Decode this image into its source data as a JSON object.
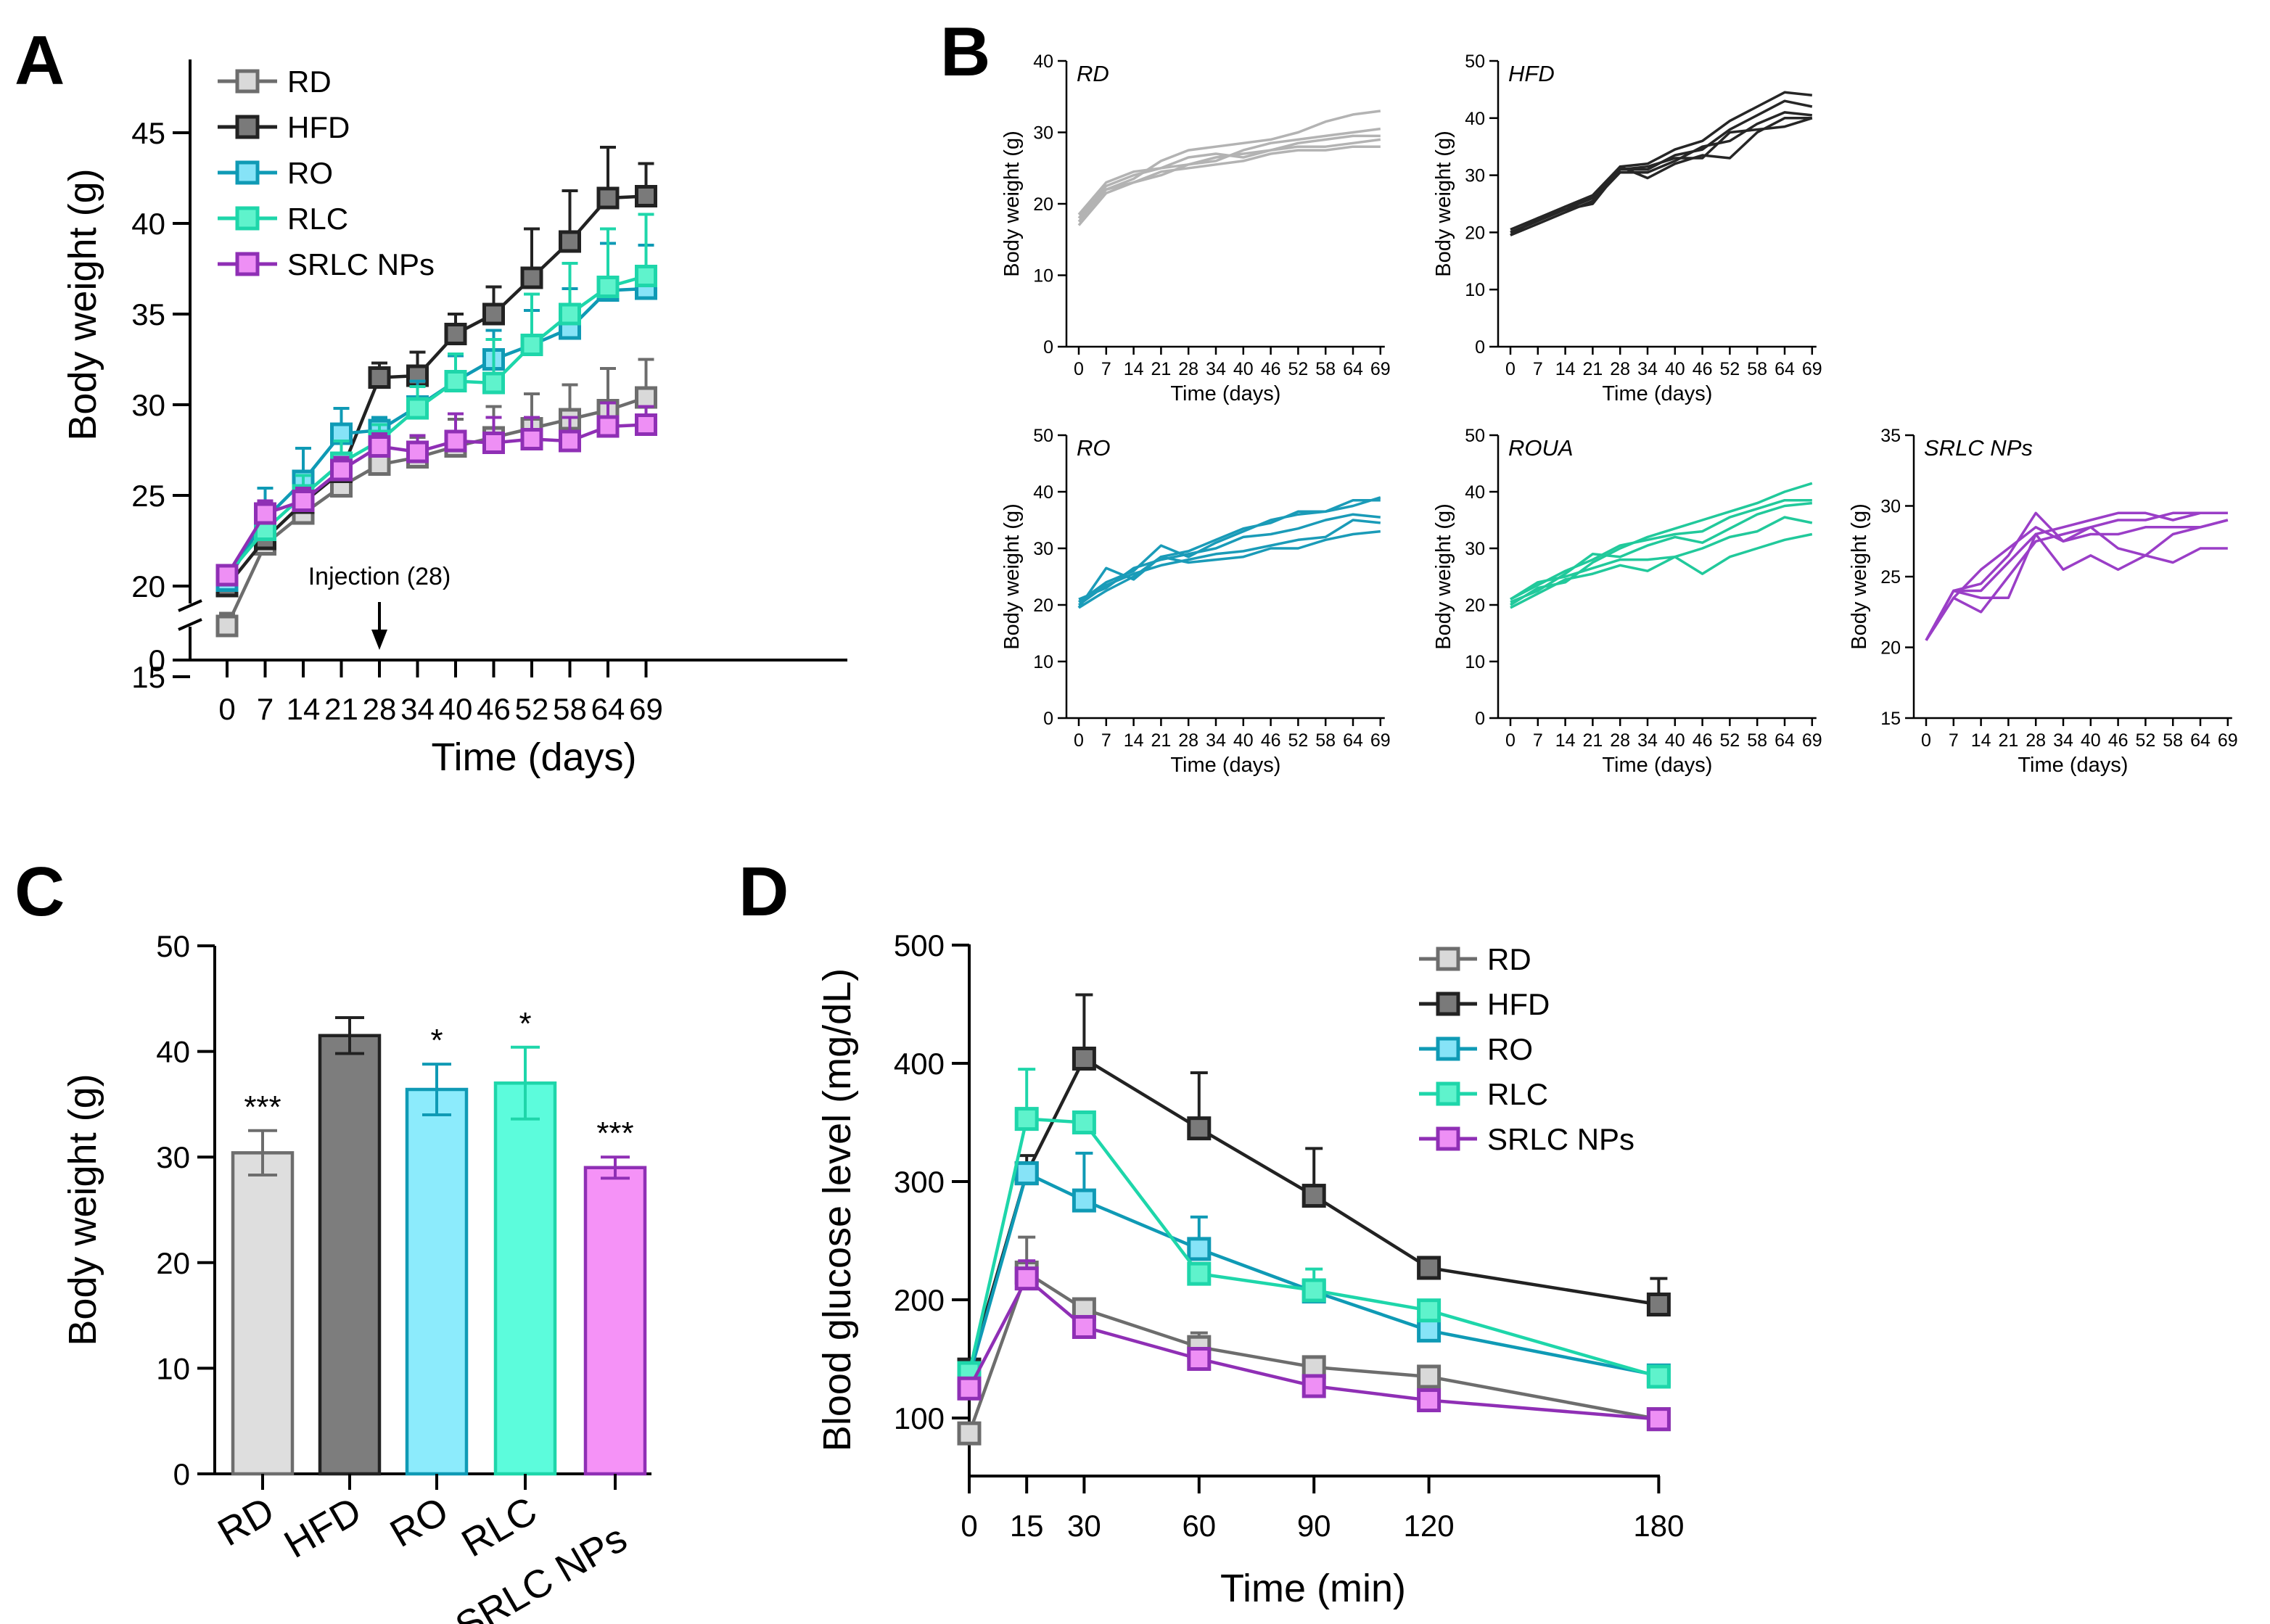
{
  "panels": {
    "A": {
      "label": "A"
    },
    "B": {
      "label": "B"
    },
    "C": {
      "label": "C"
    },
    "D": {
      "label": "D"
    }
  },
  "colors": {
    "RD": {
      "line": "#6d6d6d",
      "fill": "#d9d9d9",
      "bar": "#dedede",
      "b": "#b3b3b3"
    },
    "HFD": {
      "line": "#222222",
      "fill": "#7a7a7a",
      "bar": "#7d7d7d",
      "b": "#262626"
    },
    "RO": {
      "line": "#0f9ab5",
      "fill": "#86e3f7",
      "bar": "#8cebfc",
      "b": "#1a9bb8"
    },
    "RLC": {
      "line": "#1ed6aa",
      "fill": "#5ff3cc",
      "bar": "#5cfcdc",
      "b": "#21c99b"
    },
    "SRLC NPs": {
      "line": "#8f2fb5",
      "fill": "#ee8ff5",
      "bar": "#f592f7",
      "b": "#9a3ec7"
    }
  },
  "chart_data": [
    {
      "id": "A",
      "type": "line",
      "xlabel": "Time (days)",
      "ylabel": "Body weight (g)",
      "categories": [
        "0",
        "7",
        "14",
        "21",
        "28",
        "34",
        "40",
        "46",
        "52",
        "58",
        "64",
        "69"
      ],
      "ylim": [
        15,
        45
      ],
      "yticks": [
        "15",
        "20",
        "25",
        "30",
        "35",
        "40",
        "45"
      ],
      "broken_axis_zero": "0",
      "annotation": "Injection (28)",
      "annotation_x": "28",
      "legend": [
        "RD",
        "HFD",
        "RO",
        "RLC",
        "SRLC NPs"
      ],
      "series": [
        {
          "name": "RD",
          "values": [
            17.8,
            22.3,
            24.0,
            25.5,
            26.7,
            27.1,
            27.7,
            28.2,
            28.7,
            29.2,
            29.7,
            30.4
          ],
          "err": [
            0.7,
            0.8,
            0.8,
            0.9,
            0.7,
            1.1,
            1.5,
            1.7,
            1.9,
            1.9,
            2.3,
            2.1
          ]
        },
        {
          "name": "HFD",
          "values": [
            20.0,
            22.6,
            24.6,
            26.3,
            31.5,
            31.6,
            33.9,
            35.0,
            37.0,
            39.0,
            41.4,
            41.5
          ],
          "err": [
            0.7,
            0.8,
            0.9,
            0.9,
            0.8,
            1.3,
            1.1,
            1.5,
            2.7,
            2.8,
            2.8,
            1.8
          ]
        },
        {
          "name": "RO",
          "values": [
            20.3,
            23.7,
            25.8,
            28.4,
            28.6,
            29.9,
            31.3,
            32.5,
            33.3,
            34.2,
            36.3,
            36.4
          ],
          "err": [
            0.6,
            1.7,
            1.8,
            1.4,
            0.7,
            1.4,
            1.4,
            1.6,
            1.9,
            2.2,
            2.6,
            2.4
          ]
        },
        {
          "name": "RLC",
          "values": [
            20.6,
            23.1,
            25.0,
            26.8,
            28.0,
            29.8,
            31.3,
            31.2,
            33.3,
            35.0,
            36.5,
            37.1
          ],
          "err": [
            0.5,
            1.1,
            1.1,
            1.2,
            0.9,
            1.2,
            1.5,
            2.4,
            2.8,
            2.8,
            3.2,
            3.4
          ]
        },
        {
          "name": "SRLC NPs",
          "values": [
            20.6,
            24.0,
            24.7,
            26.4,
            27.7,
            27.4,
            28.0,
            27.9,
            28.1,
            28.0,
            28.8,
            28.9
          ],
          "err": [
            0.4,
            0.7,
            0.7,
            0.7,
            0.7,
            0.9,
            1.5,
            1.4,
            1.2,
            1.3,
            1.3,
            1.0
          ]
        }
      ]
    },
    {
      "id": "B",
      "type": "line",
      "xlabel": "Time (days)",
      "ylabel": "Body weight (g)",
      "categories": [
        "0",
        "7",
        "14",
        "21",
        "28",
        "34",
        "40",
        "46",
        "52",
        "58",
        "64",
        "69"
      ],
      "subplots": [
        {
          "name": "RD",
          "group": "RD",
          "ylim": [
            0,
            40
          ],
          "yticks": [
            "0",
            "10",
            "20",
            "30",
            "40"
          ],
          "lines": [
            [
              18.5,
              22.0,
              23.5,
              26.0,
              27.5,
              28.0,
              28.5,
              29.0,
              30.0,
              31.5,
              32.5,
              33.0
            ],
            [
              17.0,
              21.5,
              23.0,
              24.0,
              25.5,
              26.0,
              27.5,
              28.5,
              29.0,
              29.5,
              30.0,
              30.5
            ],
            [
              18.0,
              22.5,
              24.0,
              25.0,
              26.5,
              27.0,
              26.5,
              27.5,
              28.5,
              29.0,
              29.5,
              29.5
            ],
            [
              18.5,
              23.0,
              24.5,
              25.0,
              25.5,
              26.5,
              27.0,
              27.5,
              28.0,
              28.0,
              28.5,
              29.0
            ],
            [
              17.5,
              22.0,
              23.0,
              24.5,
              25.0,
              25.5,
              26.0,
              27.0,
              27.5,
              27.5,
              28.0,
              28.0
            ]
          ]
        },
        {
          "name": "HFD",
          "group": "HFD",
          "ylim": [
            0,
            50
          ],
          "yticks": [
            "0",
            "10",
            "20",
            "30",
            "40",
            "50"
          ],
          "lines": [
            [
              20.5,
              22.5,
              24.5,
              26.5,
              31.5,
              32.0,
              34.5,
              36.0,
              39.5,
              42.0,
              44.5,
              44.0
            ],
            [
              20.0,
              22.0,
              24.0,
              26.0,
              31.0,
              31.0,
              33.5,
              34.5,
              38.0,
              40.5,
              43.0,
              42.0
            ],
            [
              19.5,
              21.5,
              23.5,
              25.5,
              30.5,
              30.5,
              32.5,
              35.0,
              36.0,
              39.0,
              41.0,
              40.5
            ],
            [
              20.0,
              22.0,
              24.5,
              26.0,
              31.5,
              29.5,
              32.0,
              33.5,
              33.0,
              37.5,
              40.0,
              40.0
            ],
            [
              19.5,
              22.5,
              24.0,
              25.0,
              31.0,
              31.5,
              33.0,
              33.0,
              37.5,
              38.0,
              38.5,
              40.0
            ]
          ]
        },
        {
          "name": "RO",
          "group": "RO",
          "ylim": [
            0,
            50
          ],
          "yticks": [
            "0",
            "10",
            "20",
            "30",
            "40",
            "50"
          ],
          "lines": [
            [
              20.5,
              24.0,
              26.0,
              30.5,
              28.5,
              31.0,
              33.0,
              35.0,
              36.0,
              36.5,
              38.5,
              38.5
            ],
            [
              19.5,
              26.5,
              24.5,
              28.5,
              29.5,
              31.5,
              33.5,
              34.5,
              36.5,
              36.5,
              37.5,
              39.0
            ],
            [
              21.0,
              23.0,
              26.5,
              28.0,
              29.0,
              30.0,
              32.0,
              32.5,
              33.5,
              35.0,
              36.0,
              35.5
            ],
            [
              20.0,
              23.5,
              25.5,
              27.0,
              28.0,
              29.0,
              29.5,
              30.5,
              31.5,
              32.0,
              35.0,
              34.5
            ],
            [
              19.5,
              22.5,
              25.0,
              28.5,
              27.5,
              28.0,
              28.5,
              30.0,
              30.0,
              31.5,
              32.5,
              33.0
            ]
          ]
        },
        {
          "name": "ROUA",
          "group": "RLC",
          "ylim": [
            0,
            50
          ],
          "yticks": [
            "0",
            "10",
            "20",
            "30",
            "40",
            "50"
          ],
          "lines": [
            [
              20.0,
              23.0,
              24.0,
              27.5,
              30.0,
              32.0,
              33.5,
              35.0,
              36.5,
              38.0,
              40.0,
              41.5
            ],
            [
              21.0,
              23.5,
              26.0,
              28.0,
              30.5,
              31.5,
              32.5,
              33.0,
              35.5,
              37.0,
              38.5,
              38.5
            ],
            [
              20.5,
              22.5,
              25.5,
              29.0,
              28.5,
              30.5,
              32.0,
              31.0,
              33.5,
              36.0,
              37.5,
              38.0
            ],
            [
              21.0,
              24.0,
              25.0,
              26.5,
              28.0,
              28.0,
              28.5,
              30.0,
              32.0,
              33.0,
              35.5,
              34.5
            ],
            [
              19.5,
              22.0,
              24.5,
              25.5,
              27.0,
              26.0,
              28.5,
              25.5,
              28.5,
              30.0,
              31.5,
              32.5
            ]
          ]
        },
        {
          "name": "SRLC NPs",
          "group": "SRLC NPs",
          "ylim": [
            15,
            35
          ],
          "yticks": [
            "15",
            "20",
            "25",
            "30",
            "35"
          ],
          "lines": [
            [
              20.5,
              24.0,
              24.5,
              26.5,
              29.5,
              27.5,
              28.5,
              29.0,
              29.0,
              29.5,
              29.5,
              29.5
            ],
            [
              20.5,
              24.0,
              24.0,
              26.0,
              28.0,
              28.5,
              29.0,
              29.5,
              29.5,
              29.0,
              29.5,
              29.5
            ],
            [
              20.5,
              23.5,
              25.5,
              27.0,
              28.5,
              27.5,
              28.0,
              28.0,
              28.5,
              28.5,
              28.5,
              29.0
            ],
            [
              20.5,
              23.5,
              22.5,
              25.0,
              27.5,
              28.0,
              28.5,
              27.0,
              26.5,
              26.0,
              27.0,
              27.0
            ],
            [
              20.5,
              24.0,
              23.5,
              23.5,
              28.0,
              25.5,
              26.5,
              25.5,
              26.5,
              28.0,
              28.5,
              29.0
            ]
          ]
        }
      ]
    },
    {
      "id": "C",
      "type": "bar",
      "ylabel": "Body weight (g)",
      "categories": [
        "RD",
        "HFD",
        "RO",
        "RLC",
        "SRLC NPs"
      ],
      "values": [
        30.4,
        41.5,
        36.4,
        37.0,
        29.0
      ],
      "err": [
        2.1,
        1.7,
        2.4,
        3.4,
        1.0
      ],
      "significance": [
        "***",
        "",
        "*",
        "*",
        "***"
      ],
      "ylim": [
        0,
        50
      ],
      "yticks": [
        "0",
        "10",
        "20",
        "30",
        "40",
        "50"
      ]
    },
    {
      "id": "D",
      "type": "line",
      "xlabel": "Time (min)",
      "ylabel": "Blood glucose level (mg/dL)",
      "x": [
        0,
        15,
        30,
        60,
        90,
        120,
        180
      ],
      "xticks": [
        "0",
        "15",
        "30",
        "60",
        "90",
        "120",
        "180"
      ],
      "ylim": [
        50,
        500
      ],
      "yticks": [
        "100",
        "200",
        "300",
        "400",
        "500"
      ],
      "legend": [
        "RD",
        "HFD",
        "RO",
        "RLC",
        "SRLC NPs"
      ],
      "series": [
        {
          "name": "RD",
          "values": [
            87,
            223,
            192,
            160,
            143,
            135,
            99
          ],
          "err": [
            0,
            30,
            0,
            12,
            0,
            0,
            0
          ]
        },
        {
          "name": "HFD",
          "values": [
            141,
            307,
            404,
            345,
            288,
            227,
            196
          ],
          "err": [
            0,
            15,
            54,
            47,
            40,
            0,
            22
          ]
        },
        {
          "name": "RO",
          "values": [
            135,
            307,
            284,
            243,
            207,
            174,
            136
          ],
          "err": [
            0,
            0,
            40,
            27,
            0,
            0,
            0
          ]
        },
        {
          "name": "RLC",
          "values": [
            138,
            353,
            350,
            222,
            208,
            191,
            135
          ],
          "err": [
            0,
            42,
            0,
            0,
            18,
            0,
            0
          ]
        },
        {
          "name": "SRLC NPs",
          "values": [
            125,
            218,
            177,
            150,
            127,
            115,
            99
          ],
          "err": [
            0,
            15,
            0,
            0,
            0,
            0,
            0
          ]
        }
      ]
    }
  ]
}
